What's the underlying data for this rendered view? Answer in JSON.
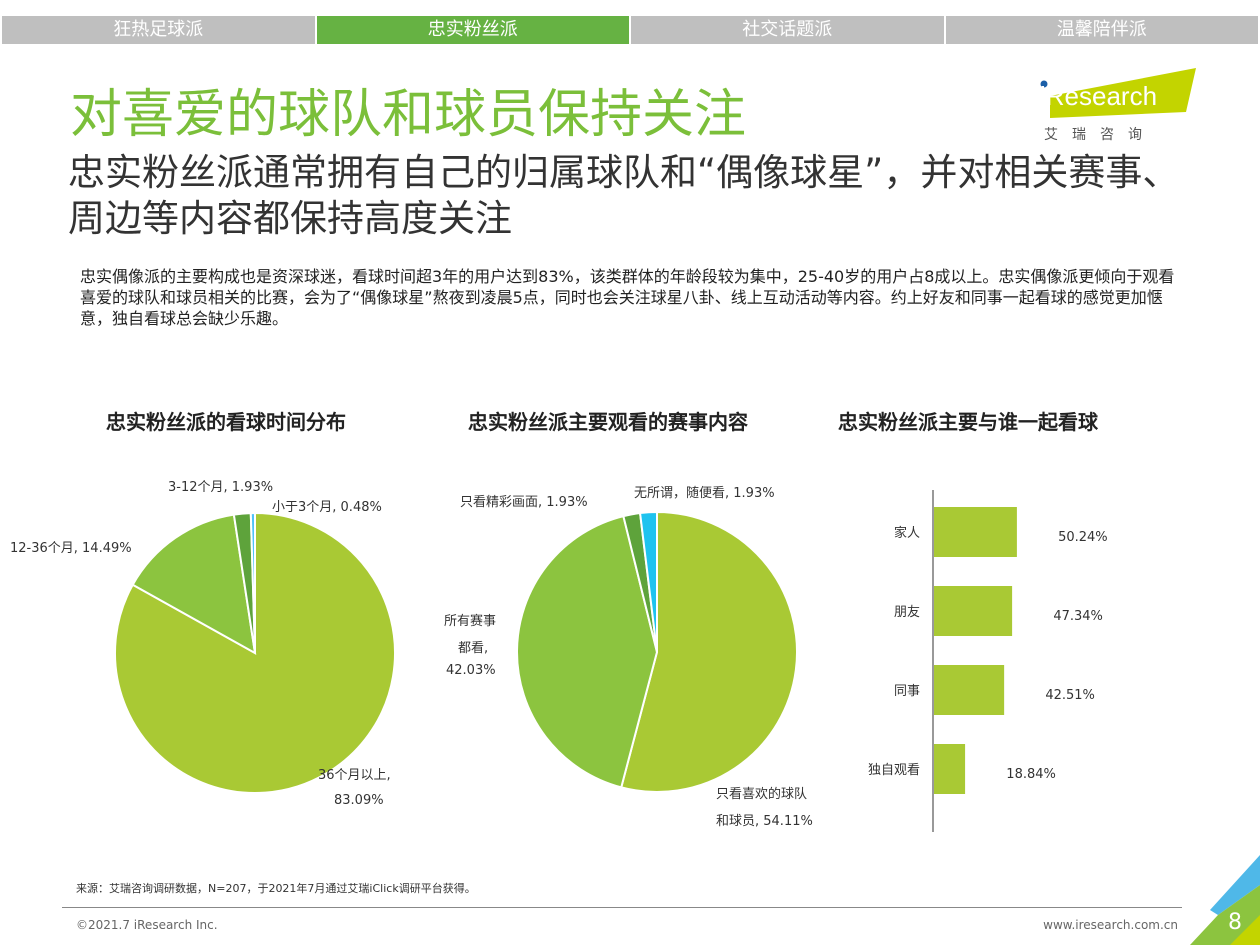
{
  "tabs": [
    {
      "label": "狂热足球派"
    },
    {
      "label": "忠实粉丝派"
    },
    {
      "label": "社交话题派"
    },
    {
      "label": "温馨陪伴派"
    }
  ],
  "title": "对喜爱的球队和球员保持关注",
  "subtitle": "忠实粉丝派通常拥有自己的归属球队和“偶像球星”，并对相关赛事、周边等内容都保持高度关注",
  "description": "忠实偶像派的主要构成也是资深球迷，看球时间超3年的用户达到83%，该类群体的年龄段较为集中，25-40岁的用户占8成以上。忠实偶像派更倾向于观看喜爱的球队和球员相关的比赛，会为了“偶像球星”熬夜到凌晨5点，同时也会关注球星八卦、线上互动活动等内容。约上好友和同事一起看球的感觉更加惬意，独自看球总会缺少乐趣。",
  "logo": {
    "brand": "iResearch",
    "cn": "艾 瑞 咨 询"
  },
  "chart_data": [
    {
      "type": "pie",
      "title": "忠实粉丝派的看球时间分布",
      "slices": [
        {
          "label": "36个月以上, 83.09%",
          "value": 83.09,
          "color": "#a9c934"
        },
        {
          "label": "12-36个月, 14.49%",
          "value": 14.49,
          "color": "#8cc43f"
        },
        {
          "label": "3-12个月, 1.93%",
          "value": 1.93,
          "color": "#5ea33b"
        },
        {
          "label": "小于3个月, 0.48%",
          "value": 0.48,
          "color": "#4fc3f7"
        }
      ]
    },
    {
      "type": "pie",
      "title": "忠实粉丝派主要观看的赛事内容",
      "slices": [
        {
          "label": "只看喜欢的球队和球员, 54.11%",
          "value": 54.11,
          "color": "#a9c934"
        },
        {
          "label": "所有赛事都看, 42.03%",
          "value": 42.03,
          "color": "#8cc43f"
        },
        {
          "label": "只看精彩画面, 1.93%",
          "value": 1.93,
          "color": "#5ea33b"
        },
        {
          "label": "无所谓，随便看, 1.93%",
          "value": 1.93,
          "color": "#1fc3ef"
        }
      ]
    },
    {
      "type": "bar",
      "orientation": "horizontal",
      "title": "忠实粉丝派主要与谁一起看球",
      "categories": [
        "家人",
        "朋友",
        "同事",
        "独自观看"
      ],
      "values": [
        50.24,
        47.34,
        42.51,
        18.84
      ],
      "value_labels": [
        "50.24%",
        "47.34%",
        "42.51%",
        "18.84%"
      ],
      "color": "#a9c934"
    }
  ],
  "pie1_labels": [
    "36个月以上,",
    "83.09%",
    "12-36个月, 14.49%",
    "3-12个月, 1.93%",
    "小于3个月, 0.48%"
  ],
  "pie2_labels": [
    "只看喜欢的球队",
    "和球员, 54.11%",
    "所有赛事",
    "都看,",
    "42.03%",
    "只看精彩画面, 1.93%",
    "无所谓，随便看, 1.93%"
  ],
  "footer": {
    "source": "来源：艾瑞咨询调研数据，N=207，于2021年7月通过艾瑞iClick调研平台获得。",
    "copyright": "©2021.7 iResearch Inc.",
    "url": "www.iresearch.com.cn",
    "page": "8"
  }
}
